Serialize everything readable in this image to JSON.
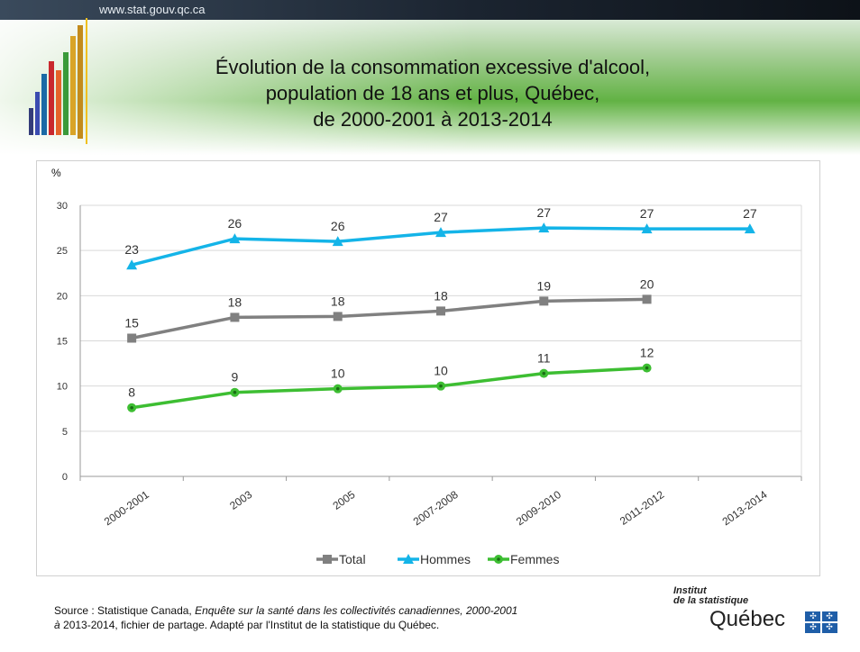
{
  "header": {
    "url": "www.stat.gouv.qc.ca",
    "title": "Évolution de la consommation excessive d'alcool,\npopulation de 18 ans et plus, Québec,\nde 2000-2001 à 2013-2014"
  },
  "chart_data": {
    "type": "line",
    "ylabel": "%",
    "ylim": [
      0,
      30
    ],
    "yticks": [
      0,
      5,
      10,
      15,
      20,
      25,
      30
    ],
    "categories": [
      "2000-2001",
      "2003",
      "2005",
      "2007-2008",
      "2009-2010",
      "2011-2012",
      "2013-2014"
    ],
    "series": [
      {
        "name": "Total",
        "color": "#808080",
        "marker": "square",
        "values": [
          15.3,
          17.6,
          17.7,
          18.3,
          19.4,
          19.6,
          null
        ],
        "labels": [
          "15",
          "18",
          "18",
          "18",
          "19",
          "20",
          null
        ]
      },
      {
        "name": "Hommes",
        "color": "#14b4e8",
        "marker": "triangle",
        "values": [
          23.4,
          26.3,
          26.0,
          27.0,
          27.5,
          27.4,
          27.4
        ],
        "labels": [
          "23",
          "26",
          "26",
          "27",
          "27",
          "27",
          "27"
        ]
      },
      {
        "name": "Femmes",
        "color": "#3dbe32",
        "marker": "circle",
        "values": [
          7.6,
          9.3,
          9.7,
          10.0,
          11.4,
          12.0,
          null
        ],
        "labels": [
          "8",
          "9",
          "10",
          "10",
          "11",
          "12",
          null
        ]
      }
    ],
    "legend_position": "bottom",
    "grid": true
  },
  "footer": {
    "source_prefix": "Source : Statistique Canada, ",
    "source_italic": "Enquête sur la santé dans les collectivités canadiennes, 2000-2001",
    "source_line2_italic": "à",
    "source_line2": " 2013-2014, fichier de partage. Adapté par l'Institut de la statistique du Québec."
  },
  "logo": {
    "line1": "Institut",
    "line2": "de la statistique",
    "line3": "Québec",
    "flag_color": "#1f5ea8"
  }
}
